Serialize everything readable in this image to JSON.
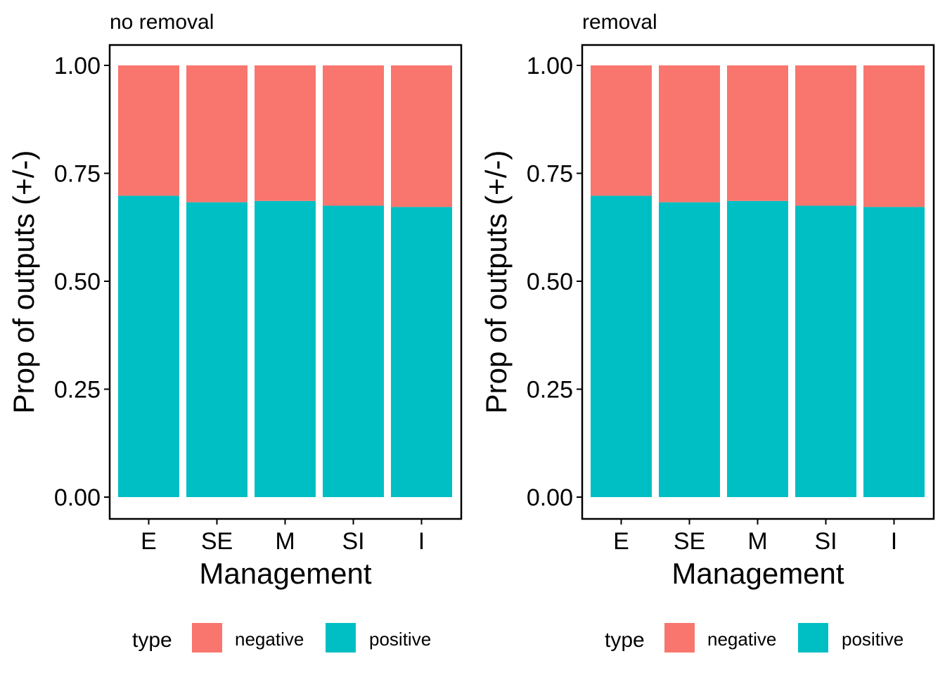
{
  "chart_data": [
    {
      "type": "bar",
      "stacked": true,
      "title": "no removal",
      "xlabel": "Management",
      "ylabel": "Prop of outputs (+/-)",
      "ylim": [
        0,
        1
      ],
      "yticks": [
        "0.00",
        "0.25",
        "0.50",
        "0.75",
        "1.00"
      ],
      "ytick_values": [
        0,
        0.25,
        0.5,
        0.75,
        1
      ],
      "grid": false,
      "categories": [
        "E",
        "SE",
        "M",
        "SI",
        "I"
      ],
      "series": [
        {
          "name": "positive",
          "color": "#00BFC4",
          "values": [
            0.698,
            0.683,
            0.686,
            0.675,
            0.672
          ]
        },
        {
          "name": "negative",
          "color": "#F8766D",
          "values": [
            0.302,
            0.317,
            0.314,
            0.325,
            0.328
          ]
        }
      ],
      "legend": {
        "title": "type",
        "position": "bottom",
        "items": [
          {
            "label": "negative",
            "color": "#F8766D"
          },
          {
            "label": "positive",
            "color": "#00BFC4"
          }
        ]
      }
    },
    {
      "type": "bar",
      "stacked": true,
      "title": "removal",
      "xlabel": "Management",
      "ylabel": "Prop of outputs (+/-)",
      "ylim": [
        0,
        1
      ],
      "yticks": [
        "0.00",
        "0.25",
        "0.50",
        "0.75",
        "1.00"
      ],
      "ytick_values": [
        0,
        0.25,
        0.5,
        0.75,
        1
      ],
      "grid": false,
      "categories": [
        "E",
        "SE",
        "M",
        "SI",
        "I"
      ],
      "series": [
        {
          "name": "positive",
          "color": "#00BFC4",
          "values": [
            0.698,
            0.683,
            0.686,
            0.675,
            0.672
          ]
        },
        {
          "name": "negative",
          "color": "#F8766D",
          "values": [
            0.302,
            0.317,
            0.314,
            0.325,
            0.328
          ]
        }
      ],
      "legend": {
        "title": "type",
        "position": "bottom",
        "items": [
          {
            "label": "negative",
            "color": "#F8766D"
          },
          {
            "label": "positive",
            "color": "#00BFC4"
          }
        ]
      }
    }
  ]
}
